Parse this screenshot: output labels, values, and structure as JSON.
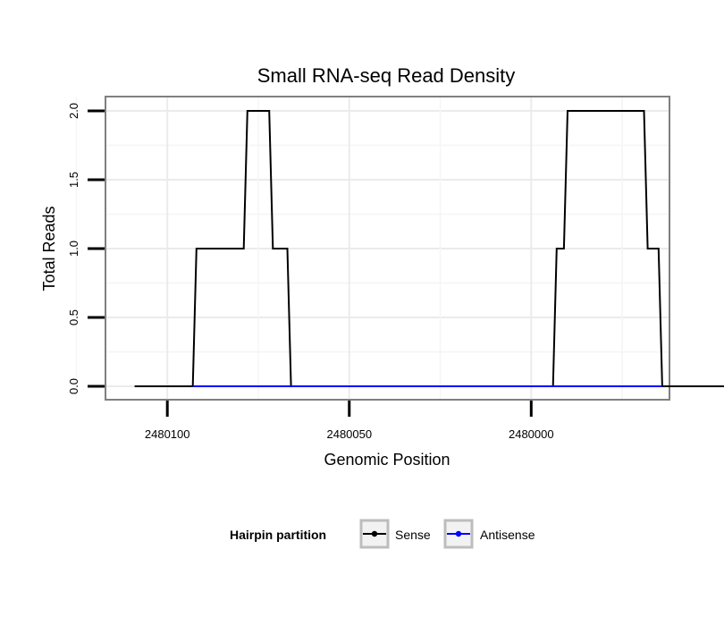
{
  "chart_data": {
    "type": "line",
    "title": "Small RNA-seq Read Density",
    "xlabel": "Genomic Position",
    "ylabel": "Total Reads",
    "x_reversed": true,
    "xlim": [
      2480117,
      2479962
    ],
    "ylim": [
      0,
      2
    ],
    "x_ticks": [
      2480100,
      2480050,
      2480000
    ],
    "x_tick_labels": [
      "2480100",
      "2480050",
      "2480000"
    ],
    "y_ticks": [
      0,
      0.5,
      1,
      1.5,
      2
    ],
    "y_tick_labels": [
      "0.0",
      "0.5",
      "1.0",
      "1.5",
      "2.0"
    ],
    "grid": true,
    "series": [
      {
        "name": "Sense",
        "color": "#000000",
        "x": [
          2480109,
          2480093,
          2480092,
          2480079,
          2480078,
          2480072,
          2480071,
          2480067,
          2480066,
          2480058,
          2480057,
          2479994,
          2479993,
          2479991,
          2479990,
          2479969,
          2479968,
          2479965,
          2479964,
          2479945
        ],
        "y": [
          0,
          0,
          1,
          1,
          2,
          2,
          1,
          1,
          0,
          0,
          0,
          0,
          1,
          1,
          2,
          2,
          1,
          1,
          0,
          0
        ]
      },
      {
        "name": "Antisense",
        "color": "#0000ff",
        "x": [
          2480093,
          2480058,
          2479994,
          2479964
        ],
        "y": [
          0,
          0,
          0,
          0
        ]
      }
    ],
    "legend": {
      "title": "Hairpin partition",
      "position": "bottom",
      "entries": [
        "Sense",
        "Antisense"
      ]
    }
  }
}
